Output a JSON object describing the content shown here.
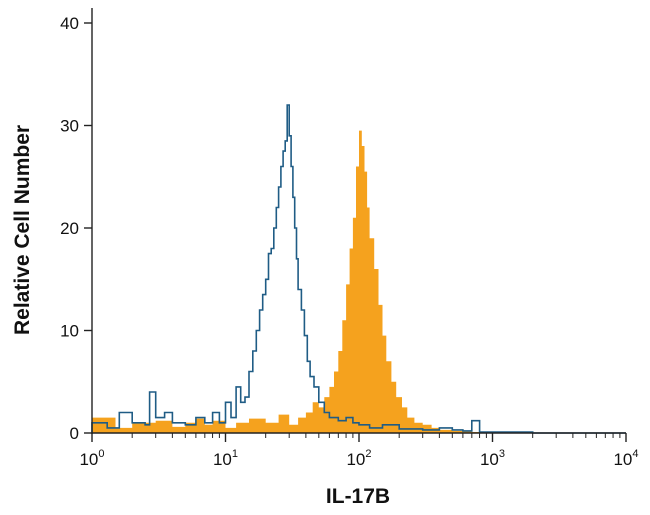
{
  "chart_data": {
    "type": "area",
    "title": "",
    "xlabel": "IL-17B",
    "ylabel": "Relative Cell Number",
    "x_scale": "log",
    "xlim": [
      1,
      10000
    ],
    "ylim": [
      0,
      40
    ],
    "grid": false,
    "legend": "none",
    "x_ticks": [
      {
        "base": "10",
        "exp": "0",
        "value": 1
      },
      {
        "base": "10",
        "exp": "1",
        "value": 10
      },
      {
        "base": "10",
        "exp": "2",
        "value": 100
      },
      {
        "base": "10",
        "exp": "3",
        "value": 1000
      },
      {
        "base": "10",
        "exp": "4",
        "value": 10000
      }
    ],
    "y_ticks": [
      "0",
      "10",
      "20",
      "30",
      "40"
    ],
    "series": [
      {
        "style": "filled",
        "color": "#F5A21E",
        "x": [
          1,
          1.5,
          2,
          3,
          4,
          5,
          6,
          7,
          8,
          10,
          12,
          15,
          20,
          25,
          30,
          35,
          40,
          45,
          50,
          55,
          60,
          65,
          70,
          75,
          80,
          85,
          90,
          95,
          100,
          105,
          110,
          115,
          120,
          130,
          140,
          150,
          160,
          175,
          190,
          210,
          230,
          260,
          300,
          350,
          400,
          500,
          700,
          1000,
          2000,
          5000,
          10000
        ],
        "y": [
          1.5,
          0.5,
          1.0,
          1.2,
          0.6,
          1.0,
          1.4,
          0.8,
          1.2,
          0.5,
          1.0,
          1.4,
          1.0,
          1.8,
          0.8,
          1.5,
          2.0,
          3.0,
          2.5,
          3.5,
          4.5,
          6.0,
          8.0,
          11.0,
          14.5,
          18.0,
          21.0,
          26.0,
          29.5,
          28.0,
          25.5,
          22.0,
          19.0,
          16.0,
          12.5,
          9.5,
          7.0,
          5.0,
          3.5,
          2.5,
          1.5,
          1.0,
          0.8,
          0.5,
          0.3,
          0.2,
          0.1,
          0.0,
          0.0,
          0.0,
          0.0
        ]
      },
      {
        "style": "outline",
        "color": "#1F5C85",
        "x": [
          1,
          1.3,
          1.6,
          2,
          2.5,
          2.7,
          3,
          3.5,
          4,
          5,
          6,
          7,
          8,
          9,
          10,
          11,
          12,
          13,
          14,
          15,
          16,
          17,
          18,
          19,
          20,
          21,
          22,
          23,
          24,
          25,
          26,
          27,
          28,
          29,
          30,
          31,
          32,
          33,
          34,
          35,
          37,
          39,
          41,
          43,
          46,
          50,
          55,
          60,
          70,
          80,
          90,
          100,
          120,
          150,
          200,
          300,
          400,
          500,
          600,
          700,
          800,
          1000,
          2000,
          5000,
          10000
        ],
        "y": [
          1.0,
          0.5,
          2.0,
          1.0,
          0.8,
          4.0,
          1.5,
          2.0,
          1.0,
          0.8,
          1.5,
          1.0,
          2.0,
          1.0,
          3.0,
          1.5,
          4.5,
          3.0,
          3.5,
          6.0,
          8.0,
          10.0,
          12.0,
          13.5,
          15.0,
          17.5,
          18.0,
          20.0,
          22.0,
          24.0,
          26.0,
          27.5,
          28.5,
          32.0,
          29.0,
          26.0,
          23.0,
          20.0,
          17.0,
          14.0,
          12.0,
          9.5,
          7.0,
          5.5,
          4.5,
          3.0,
          2.0,
          1.5,
          1.2,
          1.5,
          1.0,
          0.8,
          0.5,
          0.8,
          0.4,
          0.3,
          0.5,
          0.3,
          0.2,
          1.2,
          0.1,
          0.1,
          0.0,
          0.0,
          0.0
        ]
      }
    ]
  }
}
